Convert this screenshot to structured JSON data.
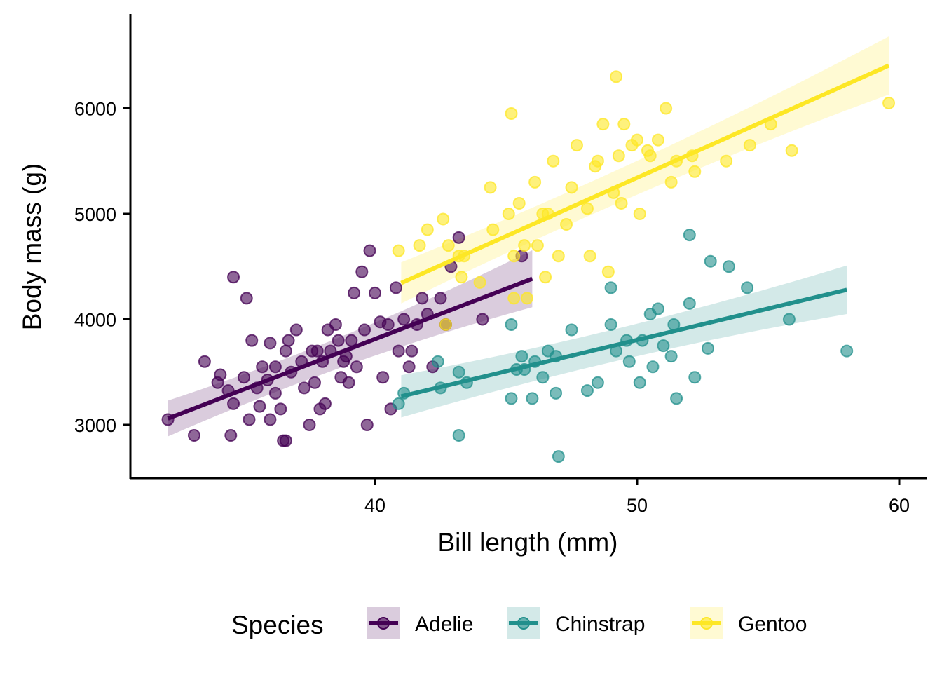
{
  "chart_data": {
    "type": "scatter",
    "title": "",
    "xlabel": "Bill length (mm)",
    "ylabel": "Body mass (g)",
    "xlim": [
      31.5,
      61
    ],
    "ylim": [
      2500,
      6900
    ],
    "xticks": [
      40,
      50,
      60
    ],
    "yticks": [
      3000,
      4000,
      5000,
      6000
    ],
    "grid": false,
    "legend": {
      "title": "Species",
      "position": "bottom"
    },
    "series": [
      {
        "name": "Adelie",
        "color": "#440154",
        "fit": {
          "x": [
            32.1,
            46.0
          ],
          "y": [
            3060,
            4385
          ],
          "ci_start": [
            2890,
            3230
          ],
          "ci_end": [
            4115,
            4655
          ]
        },
        "points": [
          [
            32.1,
            3050
          ],
          [
            33.1,
            2900
          ],
          [
            33.5,
            3600
          ],
          [
            34.0,
            3400
          ],
          [
            34.1,
            3475
          ],
          [
            34.4,
            3325
          ],
          [
            34.6,
            4400
          ],
          [
            34.6,
            3200
          ],
          [
            34.5,
            2900
          ],
          [
            35.0,
            3450
          ],
          [
            35.1,
            4200
          ],
          [
            35.2,
            3050
          ],
          [
            35.3,
            3800
          ],
          [
            35.5,
            3350
          ],
          [
            35.6,
            3175
          ],
          [
            35.7,
            3550
          ],
          [
            35.9,
            3425
          ],
          [
            36.0,
            3775
          ],
          [
            36.0,
            3050
          ],
          [
            36.2,
            3300
          ],
          [
            36.2,
            3550
          ],
          [
            36.4,
            3150
          ],
          [
            36.5,
            2850
          ],
          [
            36.6,
            2850
          ],
          [
            36.6,
            3700
          ],
          [
            36.7,
            3800
          ],
          [
            36.8,
            3500
          ],
          [
            37.0,
            3900
          ],
          [
            37.2,
            3600
          ],
          [
            37.3,
            3350
          ],
          [
            37.5,
            3000
          ],
          [
            37.6,
            3700
          ],
          [
            37.7,
            3400
          ],
          [
            37.8,
            3700
          ],
          [
            37.9,
            3150
          ],
          [
            38.0,
            3600
          ],
          [
            38.1,
            3200
          ],
          [
            38.2,
            3900
          ],
          [
            38.3,
            3700
          ],
          [
            38.5,
            3950
          ],
          [
            38.6,
            3800
          ],
          [
            38.7,
            3450
          ],
          [
            38.8,
            3600
          ],
          [
            38.9,
            3650
          ],
          [
            39.0,
            3400
          ],
          [
            39.1,
            3800
          ],
          [
            39.2,
            4250
          ],
          [
            39.3,
            3550
          ],
          [
            39.5,
            4450
          ],
          [
            39.6,
            3900
          ],
          [
            39.7,
            3000
          ],
          [
            39.8,
            4650
          ],
          [
            40.0,
            4250
          ],
          [
            40.2,
            3975
          ],
          [
            40.3,
            3450
          ],
          [
            40.5,
            3950
          ],
          [
            40.6,
            3150
          ],
          [
            40.8,
            4300
          ],
          [
            40.9,
            3700
          ],
          [
            41.1,
            4000
          ],
          [
            41.3,
            3550
          ],
          [
            41.4,
            3700
          ],
          [
            41.6,
            3950
          ],
          [
            41.8,
            4200
          ],
          [
            42.0,
            4050
          ],
          [
            42.2,
            3550
          ],
          [
            42.5,
            4200
          ],
          [
            42.7,
            3950
          ],
          [
            42.9,
            4500
          ],
          [
            43.2,
            4775
          ],
          [
            44.1,
            4000
          ],
          [
            45.6,
            4600
          ]
        ]
      },
      {
        "name": "Chinstrap",
        "color": "#21908C",
        "fit": {
          "x": [
            41.0,
            58.0
          ],
          "y": [
            3270,
            4280
          ],
          "ci_start": [
            3070,
            3470
          ],
          "ci_end": [
            4050,
            4510
          ]
        },
        "points": [
          [
            40.9,
            3200
          ],
          [
            41.1,
            3300
          ],
          [
            42.4,
            3600
          ],
          [
            42.5,
            3350
          ],
          [
            43.2,
            3500
          ],
          [
            43.2,
            2900
          ],
          [
            43.5,
            3400
          ],
          [
            45.2,
            3250
          ],
          [
            45.2,
            3950
          ],
          [
            45.4,
            3525
          ],
          [
            45.6,
            3650
          ],
          [
            45.7,
            3525
          ],
          [
            46.0,
            3250
          ],
          [
            46.1,
            3600
          ],
          [
            46.4,
            3450
          ],
          [
            46.6,
            3700
          ],
          [
            46.9,
            3300
          ],
          [
            46.9,
            3650
          ],
          [
            47.0,
            2700
          ],
          [
            47.5,
            3900
          ],
          [
            48.1,
            3325
          ],
          [
            48.5,
            3400
          ],
          [
            49.0,
            3950
          ],
          [
            49.0,
            4300
          ],
          [
            49.2,
            3700
          ],
          [
            49.6,
            3800
          ],
          [
            49.7,
            3600
          ],
          [
            50.1,
            3400
          ],
          [
            50.2,
            3800
          ],
          [
            50.5,
            4050
          ],
          [
            50.6,
            3550
          ],
          [
            50.8,
            4100
          ],
          [
            51.0,
            3750
          ],
          [
            51.3,
            3650
          ],
          [
            51.4,
            3950
          ],
          [
            51.5,
            3250
          ],
          [
            52.0,
            4150
          ],
          [
            52.0,
            4800
          ],
          [
            52.2,
            3450
          ],
          [
            52.7,
            3725
          ],
          [
            52.8,
            4550
          ],
          [
            53.5,
            4500
          ],
          [
            54.2,
            4300
          ],
          [
            55.8,
            4000
          ],
          [
            58.0,
            3700
          ]
        ]
      },
      {
        "name": "Gentoo",
        "color": "#FDE725",
        "fit": {
          "x": [
            41.0,
            59.6
          ],
          "y": [
            4345,
            6405
          ],
          "ci_start": [
            4150,
            4540
          ],
          "ci_end": [
            6130,
            6680
          ]
        },
        "points": [
          [
            40.9,
            4650
          ],
          [
            41.7,
            4700
          ],
          [
            42.0,
            4850
          ],
          [
            42.6,
            4950
          ],
          [
            42.8,
            4700
          ],
          [
            43.2,
            4600
          ],
          [
            43.3,
            4400
          ],
          [
            43.4,
            4600
          ],
          [
            44.0,
            4350
          ],
          [
            44.4,
            5250
          ],
          [
            44.5,
            4850
          ],
          [
            45.1,
            5000
          ],
          [
            45.2,
            5950
          ],
          [
            45.3,
            4600
          ],
          [
            45.5,
            5100
          ],
          [
            45.7,
            4700
          ],
          [
            46.1,
            5300
          ],
          [
            46.2,
            4700
          ],
          [
            46.4,
            5000
          ],
          [
            46.5,
            4400
          ],
          [
            46.6,
            5000
          ],
          [
            46.8,
            5500
          ],
          [
            47.0,
            4600
          ],
          [
            47.3,
            4900
          ],
          [
            47.5,
            5250
          ],
          [
            47.7,
            5650
          ],
          [
            48.1,
            5050
          ],
          [
            48.2,
            4600
          ],
          [
            48.4,
            5450
          ],
          [
            48.5,
            5500
          ],
          [
            48.7,
            5850
          ],
          [
            48.9,
            4450
          ],
          [
            49.1,
            5200
          ],
          [
            49.3,
            5550
          ],
          [
            49.4,
            5100
          ],
          [
            49.5,
            5850
          ],
          [
            49.8,
            5650
          ],
          [
            50.0,
            5700
          ],
          [
            50.1,
            5000
          ],
          [
            50.4,
            5600
          ],
          [
            50.5,
            5550
          ],
          [
            50.8,
            5700
          ],
          [
            51.1,
            6000
          ],
          [
            51.3,
            5300
          ],
          [
            51.5,
            5500
          ],
          [
            52.1,
            5550
          ],
          [
            52.2,
            5400
          ],
          [
            53.4,
            5500
          ],
          [
            54.3,
            5650
          ],
          [
            55.1,
            5850
          ],
          [
            55.9,
            5600
          ],
          [
            49.2,
            6300
          ],
          [
            59.6,
            6050
          ],
          [
            45.8,
            4200
          ],
          [
            42.7,
            3950
          ],
          [
            45.3,
            4200
          ]
        ]
      }
    ]
  }
}
